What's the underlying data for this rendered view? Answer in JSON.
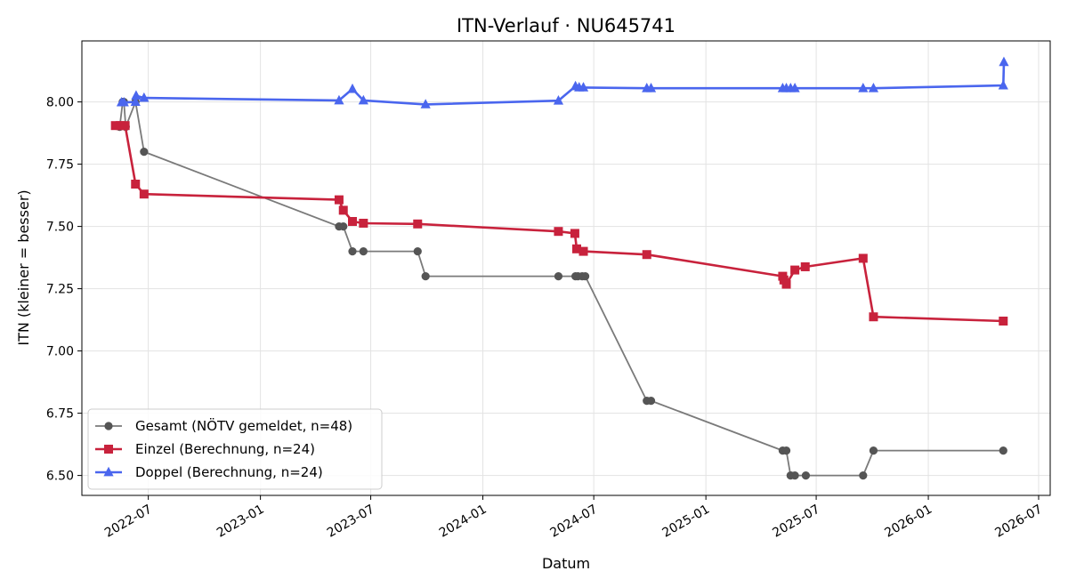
{
  "chart_data": {
    "type": "line",
    "title": "ITN-Verlauf · NU645741",
    "xlabel": "Datum",
    "ylabel": "ITN  (kleiner = besser)",
    "xlim": [
      "2022-03-14",
      "2026-07-20"
    ],
    "ylim": [
      6.42,
      8.245
    ],
    "grid": true,
    "legend_position": "lower-left",
    "x_ticks": [
      {
        "label": "2022-07",
        "date": "2022-07-01"
      },
      {
        "label": "2023-01",
        "date": "2023-01-01"
      },
      {
        "label": "2023-07",
        "date": "2023-07-01"
      },
      {
        "label": "2024-01",
        "date": "2024-01-01"
      },
      {
        "label": "2024-07",
        "date": "2024-07-01"
      },
      {
        "label": "2025-01",
        "date": "2025-01-01"
      },
      {
        "label": "2025-07",
        "date": "2025-07-01"
      },
      {
        "label": "2026-01",
        "date": "2026-01-01"
      },
      {
        "label": "2026-07",
        "date": "2026-07-01"
      }
    ],
    "y_ticks": [
      {
        "label": "6.50",
        "value": 6.5
      },
      {
        "label": "6.75",
        "value": 6.75
      },
      {
        "label": "7.00",
        "value": 7.0
      },
      {
        "label": "7.25",
        "value": 7.25
      },
      {
        "label": "7.50",
        "value": 7.5
      },
      {
        "label": "7.75",
        "value": 7.75
      },
      {
        "label": "8.00",
        "value": 8.0
      }
    ],
    "series": [
      {
        "name": "Gesamt (NÖTV gemeldet, n=48)",
        "color": "#555555",
        "line_color": "#7a7a7a",
        "marker": "circle",
        "points": [
          [
            "2022-05-15",
            7.9
          ],
          [
            "2022-05-20",
            8.0
          ],
          [
            "2022-05-22",
            8.0
          ],
          [
            "2022-05-25",
            7.9
          ],
          [
            "2022-06-10",
            8.0
          ],
          [
            "2022-06-24",
            7.8
          ],
          [
            "2023-05-10",
            7.5
          ],
          [
            "2023-05-17",
            7.5
          ],
          [
            "2023-06-01",
            7.4
          ],
          [
            "2023-06-19",
            7.4
          ],
          [
            "2023-09-16",
            7.4
          ],
          [
            "2023-09-29",
            7.3
          ],
          [
            "2024-05-04",
            7.3
          ],
          [
            "2024-06-01",
            7.3
          ],
          [
            "2024-06-05",
            7.3
          ],
          [
            "2024-06-12",
            7.3
          ],
          [
            "2024-06-17",
            7.3
          ],
          [
            "2024-09-26",
            6.8
          ],
          [
            "2024-10-03",
            6.8
          ],
          [
            "2025-05-07",
            6.6
          ],
          [
            "2025-05-13",
            6.6
          ],
          [
            "2025-05-20",
            6.5
          ],
          [
            "2025-05-27",
            6.5
          ],
          [
            "2025-06-14",
            6.5
          ],
          [
            "2025-09-16",
            6.5
          ],
          [
            "2025-10-03",
            6.6
          ],
          [
            "2026-05-04",
            6.6
          ]
        ]
      },
      {
        "name": "Einzel (Berechnung, n=24)",
        "color": "#c8223c",
        "marker": "square",
        "points": [
          [
            "2022-05-08",
            7.905
          ],
          [
            "2022-05-16",
            7.905
          ],
          [
            "2022-05-24",
            7.905
          ],
          [
            "2022-06-10",
            7.67
          ],
          [
            "2022-06-24",
            7.63
          ],
          [
            "2023-05-10",
            7.607
          ],
          [
            "2023-05-17",
            7.565
          ],
          [
            "2023-06-01",
            7.52
          ],
          [
            "2023-06-19",
            7.513
          ],
          [
            "2023-09-16",
            7.51
          ],
          [
            "2024-05-04",
            7.48
          ],
          [
            "2024-05-31",
            7.472
          ],
          [
            "2024-06-03",
            7.41
          ],
          [
            "2024-06-14",
            7.4
          ],
          [
            "2024-09-26",
            7.387
          ],
          [
            "2025-05-07",
            7.3
          ],
          [
            "2025-05-09",
            7.285
          ],
          [
            "2025-05-13",
            7.268
          ],
          [
            "2025-05-27",
            7.325
          ],
          [
            "2025-06-13",
            7.338
          ],
          [
            "2025-09-16",
            7.372
          ],
          [
            "2025-10-03",
            7.137
          ],
          [
            "2026-05-04",
            7.12
          ]
        ]
      },
      {
        "name": "Doppel (Berechnung, n=24)",
        "color": "#4a66ee",
        "marker": "triangle",
        "points": [
          [
            "2022-05-18",
            7.998
          ],
          [
            "2022-05-22",
            7.998
          ],
          [
            "2022-06-10",
            8.0
          ],
          [
            "2022-06-11",
            8.025
          ],
          [
            "2022-06-24",
            8.016
          ],
          [
            "2023-05-10",
            8.006
          ],
          [
            "2023-06-01",
            8.052
          ],
          [
            "2023-06-19",
            8.006
          ],
          [
            "2023-09-29",
            7.99
          ],
          [
            "2024-05-04",
            8.005
          ],
          [
            "2024-06-01",
            8.063
          ],
          [
            "2024-06-07",
            8.058
          ],
          [
            "2024-06-14",
            8.058
          ],
          [
            "2024-09-26",
            8.055
          ],
          [
            "2024-10-03",
            8.055
          ],
          [
            "2025-05-07",
            8.055
          ],
          [
            "2025-05-13",
            8.055
          ],
          [
            "2025-05-20",
            8.055
          ],
          [
            "2025-05-27",
            8.055
          ],
          [
            "2025-09-16",
            8.055
          ],
          [
            "2025-10-03",
            8.055
          ],
          [
            "2026-05-04",
            8.066
          ],
          [
            "2026-05-05",
            8.16
          ]
        ]
      }
    ]
  }
}
